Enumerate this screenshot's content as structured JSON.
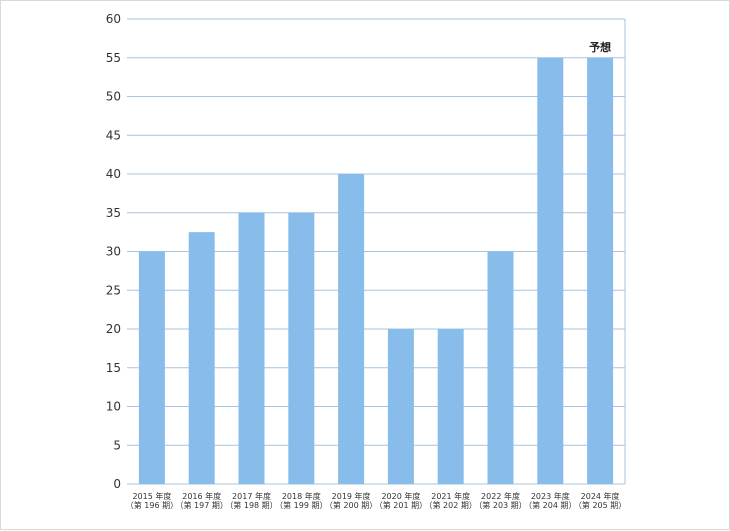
{
  "chart_data": {
    "type": "bar",
    "categories": [
      [
        "2015 年度",
        "（第 196 期）"
      ],
      [
        "2016 年度",
        "（第 197 期）"
      ],
      [
        "2017 年度",
        "（第 198 期）"
      ],
      [
        "2018 年度",
        "（第 199 期）"
      ],
      [
        "2019 年度",
        "（第 200 期）"
      ],
      [
        "2020 年度",
        "（第 201 期）"
      ],
      [
        "2021 年度",
        "（第 202 期）"
      ],
      [
        "2022 年度",
        "（第 203 期）"
      ],
      [
        "2023 年度",
        "（第 204 期）"
      ],
      [
        "2024 年度",
        "（第 205 期）"
      ]
    ],
    "values": [
      30,
      32.5,
      35,
      35,
      40,
      20,
      20,
      30,
      55,
      55
    ],
    "ylim": [
      0,
      60
    ],
    "yticks": [
      0,
      5,
      10,
      15,
      20,
      25,
      30,
      35,
      40,
      45,
      50,
      55,
      60
    ],
    "grid": true,
    "bar_color": "#88bdeb",
    "grid_color": "#a9c4de",
    "annotations": [
      {
        "category_index": 9,
        "text": "予想"
      }
    ]
  }
}
